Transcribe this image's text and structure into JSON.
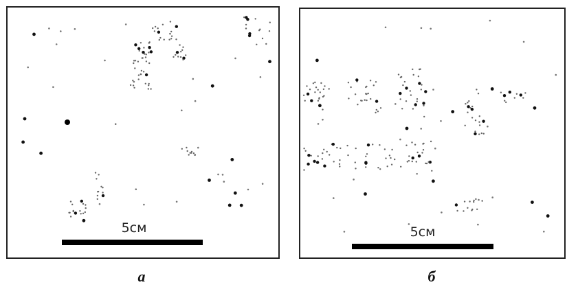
{
  "panels": [
    {
      "scale": "5см",
      "label": "а"
    },
    {
      "scale": "5см",
      "label": "б"
    }
  ]
}
